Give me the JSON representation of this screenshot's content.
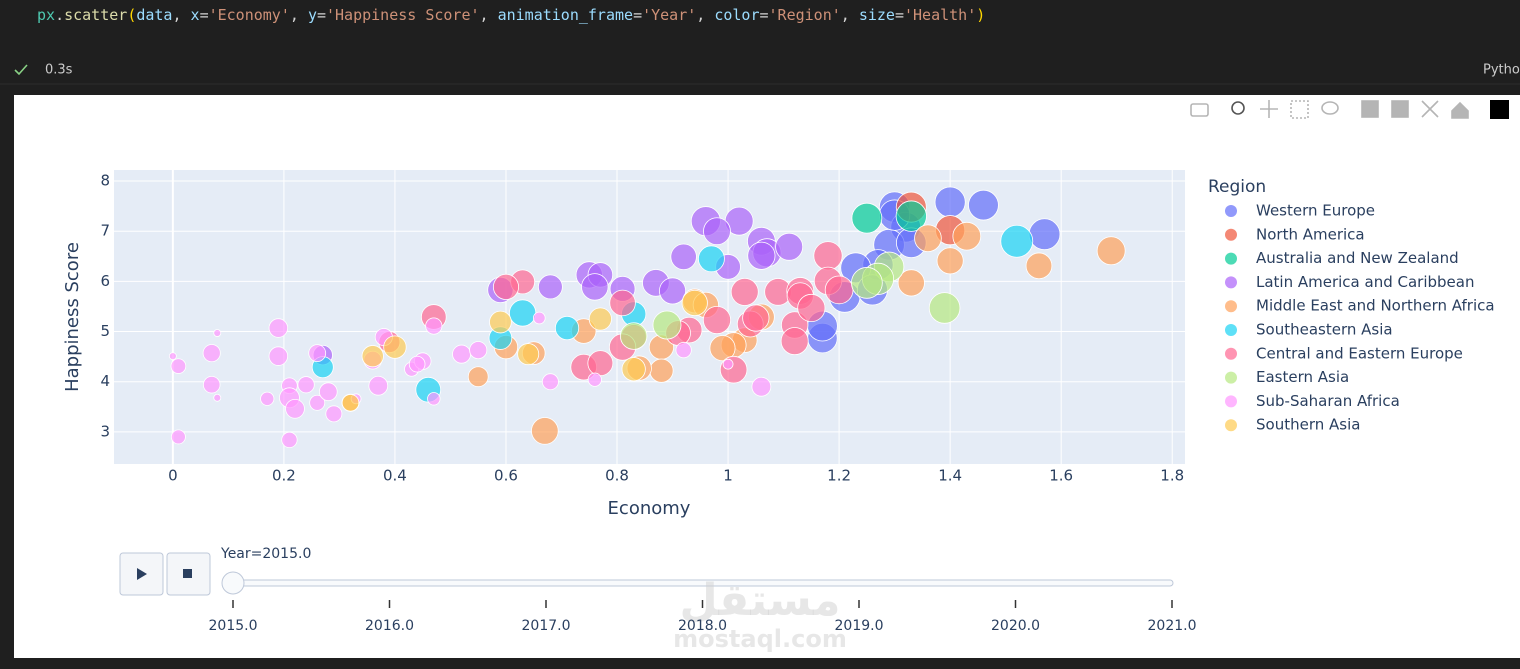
{
  "code": [
    {
      "text": "px",
      "color": "#4ec9b0"
    },
    {
      "text": ".",
      "color": "#d4d4d4"
    },
    {
      "text": "scatter",
      "color": "#dcdcaa"
    },
    {
      "text": "(",
      "color": "#ffd700"
    },
    {
      "text": "data",
      "color": "#9cdcfe"
    },
    {
      "text": ", ",
      "color": "#d4d4d4"
    },
    {
      "text": "x",
      "color": "#9cdcfe"
    },
    {
      "text": "=",
      "color": "#d4d4d4"
    },
    {
      "text": "'Economy'",
      "color": "#ce9178"
    },
    {
      "text": ", ",
      "color": "#d4d4d4"
    },
    {
      "text": "y",
      "color": "#9cdcfe"
    },
    {
      "text": "=",
      "color": "#d4d4d4"
    },
    {
      "text": "'Happiness Score'",
      "color": "#ce9178"
    },
    {
      "text": ", ",
      "color": "#d4d4d4"
    },
    {
      "text": "animation_frame",
      "color": "#9cdcfe"
    },
    {
      "text": "=",
      "color": "#d4d4d4"
    },
    {
      "text": "'Year'",
      "color": "#ce9178"
    },
    {
      "text": ", ",
      "color": "#d4d4d4"
    },
    {
      "text": "color",
      "color": "#9cdcfe"
    },
    {
      "text": "=",
      "color": "#d4d4d4"
    },
    {
      "text": "'Region'",
      "color": "#ce9178"
    },
    {
      "text": ", ",
      "color": "#d4d4d4"
    },
    {
      "text": "size",
      "color": "#9cdcfe"
    },
    {
      "text": "=",
      "color": "#d4d4d4"
    },
    {
      "text": "'Health'",
      "color": "#ce9178"
    },
    {
      "text": ")",
      "color": "#ffd700"
    }
  ],
  "status": {
    "time": "0.3s"
  },
  "kernel": "Pytho",
  "watermark": {
    "arabic": "مستقل",
    "site": "mostaql.com"
  },
  "chart_data": {
    "type": "scatter",
    "x_label": "Economy",
    "y_label": "Happiness Score",
    "legend_title": "Region",
    "xlim": [
      -0.106,
      1.823
    ],
    "ylim": [
      2.36,
      8.22
    ],
    "xticks": [
      0,
      0.2,
      0.4,
      0.6,
      0.8,
      1,
      1.2,
      1.4,
      1.6,
      1.8
    ],
    "yticks": [
      3,
      4,
      5,
      6,
      7,
      8
    ],
    "grid": true,
    "series": [
      {
        "name": "Western Europe",
        "color": "#636efa",
        "x": [
          1.3,
          1.32,
          1.4,
          1.46,
          1.57,
          1.29,
          1.33,
          1.27,
          1.23,
          1.21,
          1.17,
          1.17,
          1.26,
          1.3
        ],
        "y": [
          7.48,
          7.08,
          7.58,
          7.52,
          6.94,
          6.73,
          6.77,
          6.33,
          6.27,
          5.69,
          4.87,
          5.11,
          5.83,
          7.32
        ],
        "size": [
          0.94,
          0.9,
          0.92,
          0.9,
          0.96,
          0.95,
          0.89,
          0.93,
          0.91,
          0.95,
          0.88,
          0.9,
          0.92,
          0.93
        ]
      },
      {
        "name": "North America",
        "color": "#EF553B",
        "x": [
          1.33,
          1.4
        ],
        "y": [
          7.48,
          7.02
        ],
        "size": [
          0.91,
          0.86
        ]
      },
      {
        "name": "Australia and New Zealand",
        "color": "#00cc96",
        "x": [
          1.25,
          1.33
        ],
        "y": [
          7.26,
          7.3
        ],
        "size": [
          0.9,
          0.93
        ]
      },
      {
        "name": "Latin America and Caribbean",
        "color": "#ab63fa",
        "x": [
          0.96,
          1.02,
          0.98,
          1.06,
          1.07,
          1.11,
          1.0,
          0.92,
          0.75,
          0.77,
          0.76,
          0.81,
          0.87,
          0.9,
          0.68,
          0.59,
          0.27,
          1.06
        ],
        "y": [
          7.2,
          7.2,
          7.0,
          6.8,
          6.57,
          6.69,
          6.29,
          6.49,
          6.13,
          6.13,
          5.89,
          5.85,
          5.97,
          5.81,
          5.89,
          5.83,
          4.53,
          6.51
        ],
        "size": [
          0.86,
          0.79,
          0.73,
          0.78,
          0.8,
          0.74,
          0.62,
          0.66,
          0.7,
          0.61,
          0.71,
          0.63,
          0.72,
          0.69,
          0.58,
          0.65,
          0.38,
          0.75
        ]
      },
      {
        "name": "Middle East and Northern Africa",
        "color": "#FFA15A",
        "x": [
          1.69,
          1.43,
          1.36,
          1.4,
          1.56,
          1.33,
          1.06,
          1.03,
          1.01,
          0.99,
          0.88,
          0.88,
          0.94,
          0.96,
          0.74,
          0.6,
          0.55,
          0.65,
          0.67,
          0.32,
          0.84
        ],
        "y": [
          6.61,
          6.9,
          6.86,
          6.41,
          6.31,
          5.97,
          5.29,
          4.83,
          4.73,
          4.67,
          4.69,
          4.22,
          5.61,
          5.53,
          5.01,
          4.69,
          4.1,
          4.57,
          3.02,
          3.58,
          4.27
        ],
        "size": [
          0.79,
          0.78,
          0.72,
          0.69,
          0.67,
          0.7,
          0.68,
          0.62,
          0.63,
          0.64,
          0.6,
          0.55,
          0.58,
          0.65,
          0.61,
          0.55,
          0.4,
          0.52,
          0.72,
          0.3,
          0.6
        ]
      },
      {
        "name": "Southeastern Asia",
        "color": "#19d3f3",
        "x": [
          1.52,
          0.97,
          0.63,
          0.71,
          0.83,
          0.59,
          0.46,
          0.27
        ],
        "y": [
          6.8,
          6.45,
          5.37,
          5.07,
          5.35,
          4.87,
          3.84,
          4.29
        ],
        "size": [
          1.03,
          0.68,
          0.7,
          0.55,
          0.6,
          0.52,
          0.62,
          0.45
        ]
      },
      {
        "name": "Central and Eastern Europe",
        "color": "#FF6692",
        "x": [
          1.18,
          0.63,
          0.6,
          0.47,
          0.81,
          1.03,
          1.09,
          1.13,
          1.18,
          1.13,
          0.98,
          1.04,
          1.05,
          1.12,
          1.12,
          1.15,
          1.2,
          0.93,
          0.91,
          0.83,
          0.81,
          0.74,
          0.77,
          1.01,
          0.39
        ],
        "y": [
          6.51,
          5.99,
          5.89,
          5.29,
          5.57,
          5.79,
          5.79,
          5.81,
          6.01,
          5.71,
          5.23,
          5.15,
          5.27,
          5.13,
          4.81,
          5.47,
          5.83,
          5.03,
          4.97,
          4.89,
          4.69,
          4.29,
          4.37,
          4.24,
          4.79
        ],
        "size": [
          0.81,
          0.58,
          0.64,
          0.62,
          0.66,
          0.74,
          0.72,
          0.73,
          0.76,
          0.7,
          0.75,
          0.68,
          0.7,
          0.71,
          0.74,
          0.75,
          0.78,
          0.66,
          0.62,
          0.64,
          0.7,
          0.67,
          0.63,
          0.72,
          0.45
        ]
      },
      {
        "name": "Eastern Asia",
        "color": "#B6E880",
        "x": [
          1.39,
          1.29,
          1.27,
          1.25,
          0.89,
          0.83
        ],
        "y": [
          5.47,
          6.29,
          6.05,
          5.97,
          5.13,
          4.91
        ],
        "size": [
          0.95,
          0.88,
          0.99,
          0.96,
          0.79,
          0.71
        ]
      },
      {
        "name": "Sub-Saharan Africa",
        "color": "#FF97FF",
        "x": [
          0.0,
          0.01,
          0.01,
          0.07,
          0.08,
          0.07,
          0.08,
          0.19,
          0.19,
          0.21,
          0.21,
          0.22,
          0.21,
          0.17,
          0.24,
          0.26,
          0.28,
          0.29,
          0.33,
          0.37,
          0.36,
          0.38,
          0.43,
          0.45,
          0.44,
          0.47,
          0.47,
          0.52,
          0.55,
          0.66,
          0.68,
          0.76,
          0.92,
          1.0,
          1.06,
          0.26
        ],
        "y": [
          4.51,
          4.31,
          2.9,
          4.57,
          4.97,
          3.94,
          3.68,
          5.07,
          4.51,
          3.92,
          3.68,
          3.46,
          2.84,
          3.66,
          3.94,
          3.58,
          3.8,
          3.36,
          3.66,
          3.92,
          4.43,
          4.89,
          4.25,
          4.41,
          4.35,
          5.11,
          3.66,
          4.55,
          4.63,
          5.27,
          4.0,
          4.04,
          4.63,
          4.35,
          3.9,
          4.57
        ],
        "size": [
          0.05,
          0.22,
          0.2,
          0.3,
          0.05,
          0.28,
          0.05,
          0.35,
          0.35,
          0.25,
          0.4,
          0.36,
          0.24,
          0.18,
          0.27,
          0.23,
          0.32,
          0.26,
          0.1,
          0.36,
          0.32,
          0.3,
          0.2,
          0.28,
          0.25,
          0.27,
          0.16,
          0.33,
          0.3,
          0.14,
          0.26,
          0.18,
          0.24,
          0.1,
          0.36,
          0.29
        ]
      },
      {
        "name": "Southern Asia",
        "color": "#FECB52",
        "x": [
          0.36,
          0.4,
          0.32,
          0.64,
          0.59,
          0.77,
          0.83,
          0.94
        ],
        "y": [
          4.51,
          4.69,
          3.58,
          4.55,
          5.19,
          5.25,
          4.25,
          5.57
        ],
        "size": [
          0.46,
          0.51,
          0.28,
          0.45,
          0.48,
          0.5,
          0.55,
          0.65
        ]
      }
    ]
  },
  "slider": {
    "current": "Year=2015.0",
    "ticks": [
      {
        "value": 2015,
        "label": "2015.0"
      },
      {
        "value": 2016,
        "label": "2016.0"
      },
      {
        "value": 2017,
        "label": "2017.0"
      },
      {
        "value": 2018,
        "label": "2018.0"
      },
      {
        "value": 2019,
        "label": "2019.0"
      },
      {
        "value": 2020,
        "label": "2020.0"
      },
      {
        "value": 2021,
        "label": "2021.0"
      }
    ]
  }
}
